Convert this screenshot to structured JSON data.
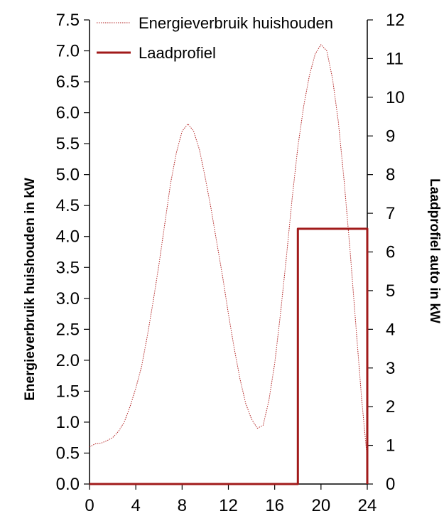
{
  "chart_data": {
    "type": "line",
    "title": "",
    "xlabel": "",
    "ylabel_left": "Energieverbruik huishouden in kW",
    "ylabel_right": "Laadprofiel auto in kW",
    "xlim": [
      0,
      24
    ],
    "ylim_left": [
      0,
      7.5
    ],
    "ylim_right": [
      0,
      12
    ],
    "x_ticks": [
      "0",
      "4",
      "8",
      "12",
      "16",
      "20",
      "24"
    ],
    "y_left_ticks": [
      "0.0",
      "0.5",
      "1.0",
      "1.5",
      "2.0",
      "2.5",
      "3.0",
      "3.5",
      "4.0",
      "4.5",
      "5.0",
      "5.5",
      "6.0",
      "6.5",
      "7.0",
      "7.5"
    ],
    "y_right_ticks": [
      "0",
      "1",
      "2",
      "3",
      "4",
      "5",
      "6",
      "7",
      "8",
      "9",
      "10",
      "11",
      "12"
    ],
    "grid": false,
    "legend_position": "top-left",
    "series": [
      {
        "name": "Energieverbruik huishouden",
        "axis": "left",
        "style": "dotted",
        "color": "#b22222",
        "x": [
          0,
          0.5,
          1,
          1.5,
          2,
          2.5,
          3,
          3.5,
          4,
          4.5,
          5,
          5.5,
          6,
          6.5,
          7,
          7.5,
          8,
          8.5,
          9,
          9.5,
          10,
          10.5,
          11,
          11.5,
          12,
          12.5,
          13,
          13.5,
          14,
          14.5,
          15,
          15.5,
          16,
          16.5,
          17,
          17.5,
          18,
          18.5,
          19,
          19.5,
          20,
          20.5,
          21,
          21.5,
          22,
          22.5,
          23,
          23.5,
          24
        ],
        "y": [
          0.6,
          0.65,
          0.66,
          0.7,
          0.75,
          0.85,
          1.0,
          1.25,
          1.55,
          1.9,
          2.4,
          2.95,
          3.55,
          4.2,
          4.85,
          5.35,
          5.7,
          5.82,
          5.7,
          5.4,
          4.95,
          4.45,
          3.9,
          3.35,
          2.75,
          2.2,
          1.7,
          1.3,
          1.05,
          0.9,
          0.95,
          1.35,
          1.95,
          2.75,
          3.65,
          4.6,
          5.45,
          6.1,
          6.6,
          6.95,
          7.1,
          7.0,
          6.55,
          5.85,
          4.9,
          3.8,
          2.6,
          1.4,
          0.4
        ]
      },
      {
        "name": "Laadprofiel",
        "axis": "right",
        "style": "solid",
        "color": "#a11a1a",
        "x": [
          0,
          18,
          18,
          24,
          24
        ],
        "y": [
          0,
          0,
          6.6,
          6.6,
          0
        ]
      }
    ]
  }
}
